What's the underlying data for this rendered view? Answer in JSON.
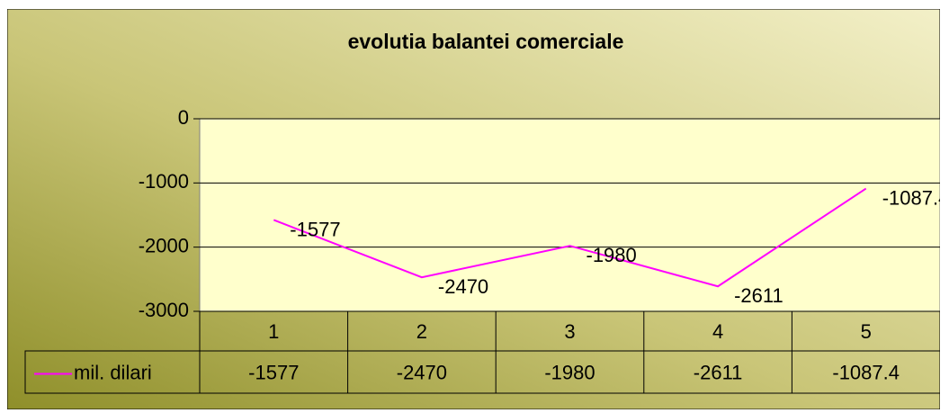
{
  "chart_data": {
    "type": "line",
    "title": "evolutia balantei comerciale",
    "categories": [
      "1",
      "2",
      "3",
      "4",
      "5"
    ],
    "series": [
      {
        "name": "mil. dilari",
        "color": "#ff00ff",
        "values": [
          -1577,
          -2470,
          -1980,
          -2611,
          -1087.4
        ]
      }
    ],
    "ylim": [
      -3000,
      0
    ],
    "yticks": [
      0,
      -1000,
      -2000,
      -3000
    ],
    "grid": true,
    "data_labels": true,
    "data_table": true
  }
}
